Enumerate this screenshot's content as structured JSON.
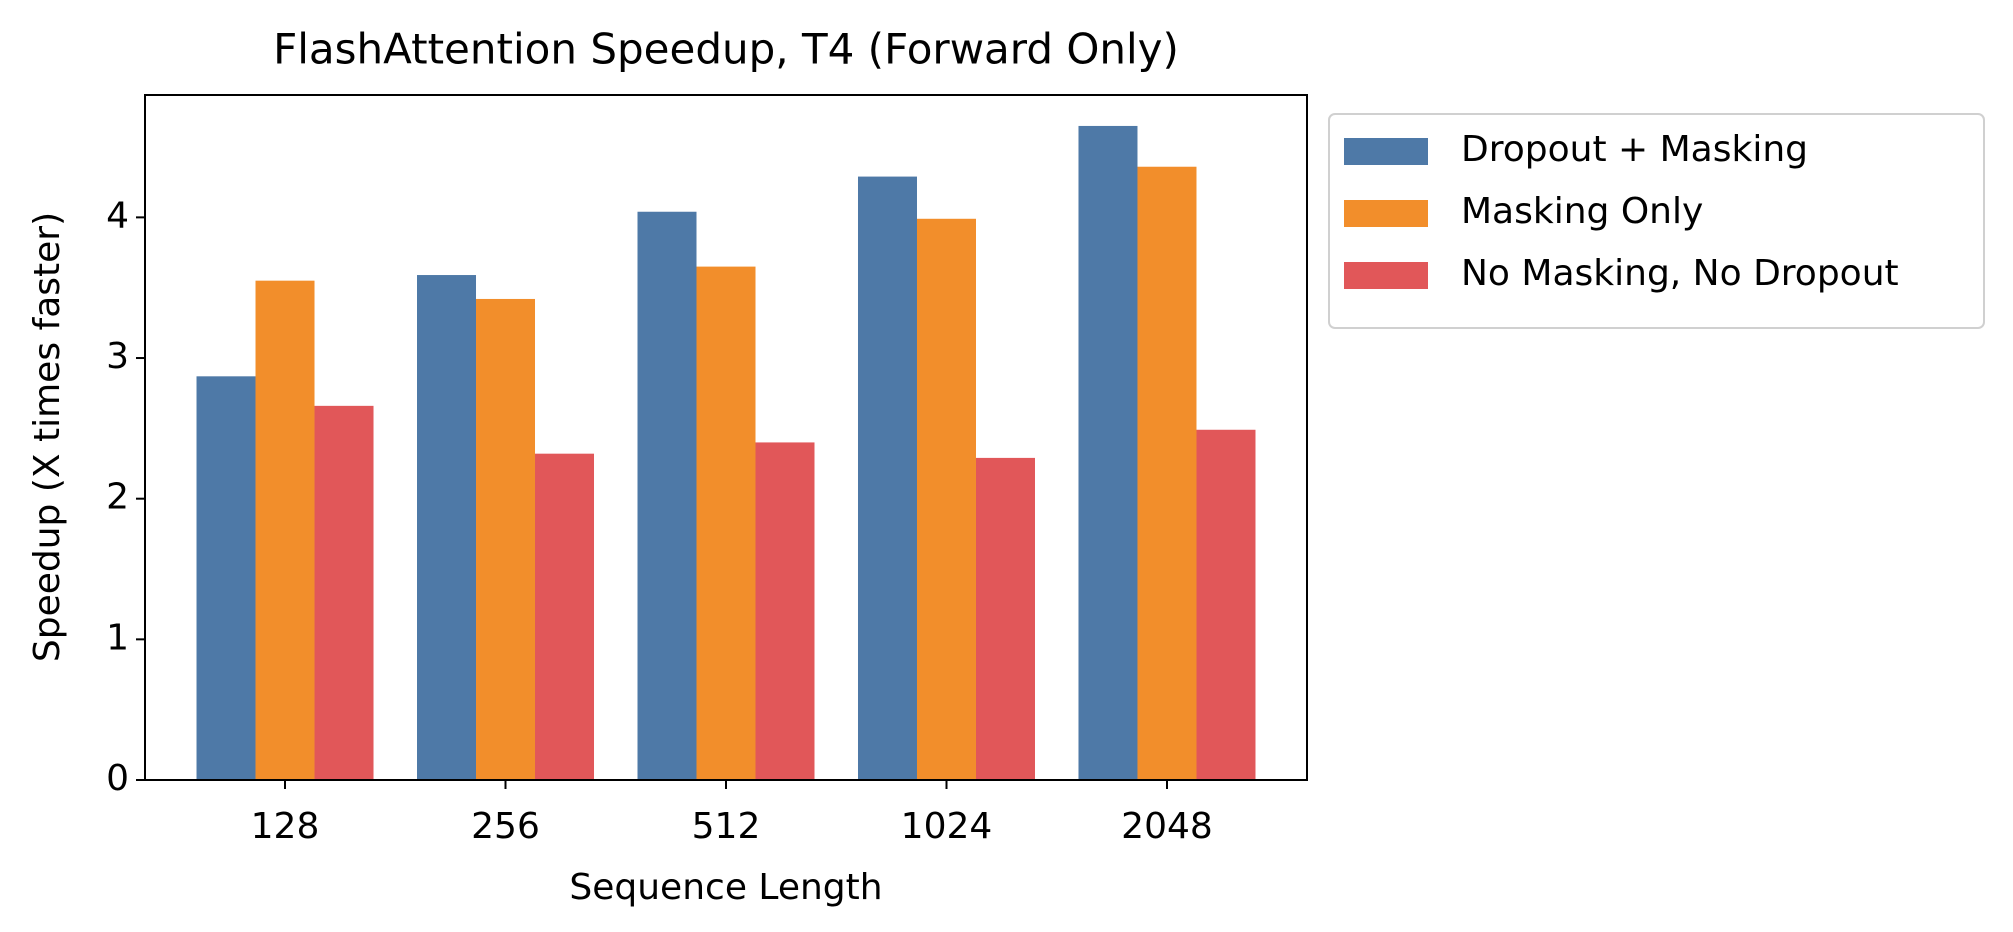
{
  "chart_data": {
    "type": "bar",
    "title": "FlashAttention Speedup, T4 (Forward Only)",
    "x_label": "Sequence Length",
    "y_label": "Speedup (X times faster)",
    "categories": [
      "128",
      "256",
      "512",
      "1024",
      "2048"
    ],
    "series": [
      {
        "name": "Dropout + Masking",
        "color": "#4e79a7",
        "values": [
          2.87,
          3.59,
          4.04,
          4.29,
          4.65
        ]
      },
      {
        "name": "Masking Only",
        "color": "#f28e2b",
        "values": [
          3.55,
          3.42,
          3.65,
          3.99,
          4.36
        ]
      },
      {
        "name": "No Masking, No Dropout",
        "color": "#e15759",
        "values": [
          2.66,
          2.32,
          2.4,
          2.29,
          2.49
        ]
      }
    ],
    "ylim": [
      0,
      4.87
    ],
    "yticks": [
      0,
      1,
      2,
      3,
      4
    ],
    "grid": false,
    "legend": "right"
  }
}
